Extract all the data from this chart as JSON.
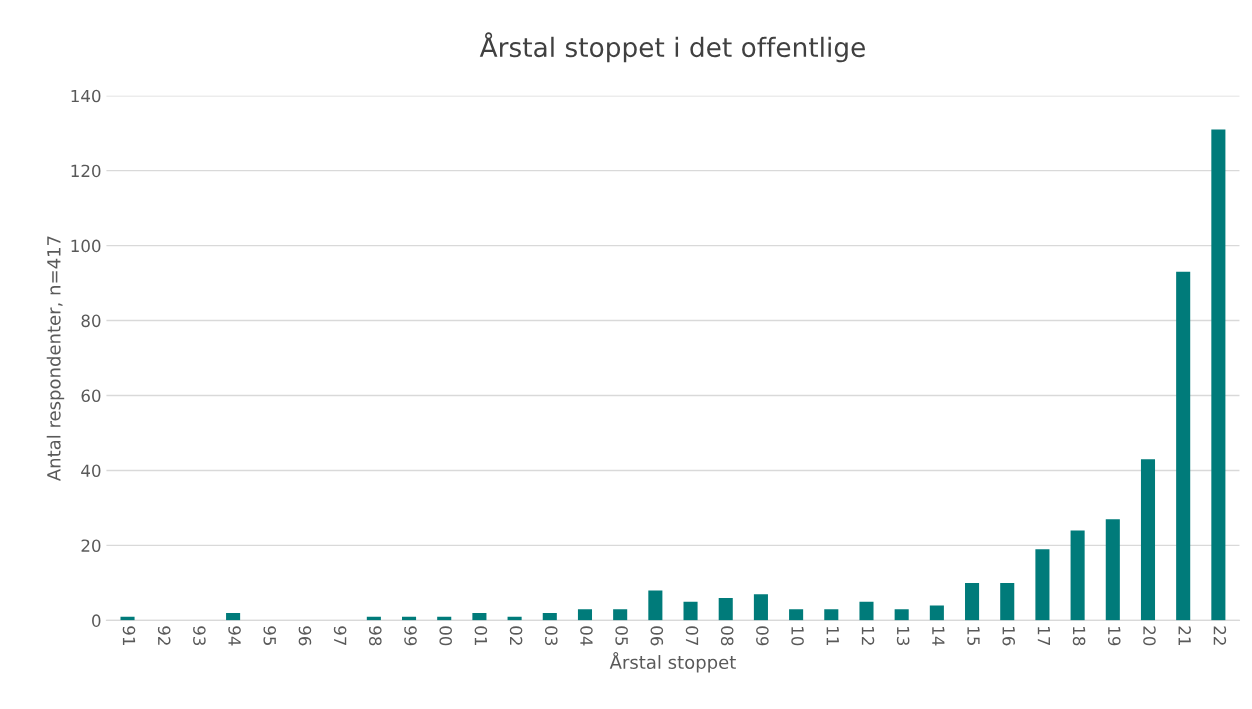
{
  "chart_data": {
    "type": "bar",
    "title": "Årstal stoppet i det offentlige",
    "xlabel": "Årstal stoppet",
    "ylabel": "Antal respondenter, n=417",
    "categories": [
      "91",
      "92",
      "93",
      "94",
      "95",
      "96",
      "97",
      "98",
      "99",
      "00",
      "01",
      "02",
      "03",
      "04",
      "05",
      "06",
      "07",
      "08",
      "09",
      "10",
      "11",
      "12",
      "13",
      "14",
      "15",
      "16",
      "17",
      "18",
      "19",
      "20",
      "21",
      "22"
    ],
    "values": [
      1,
      0,
      0,
      2,
      0,
      0,
      0,
      1,
      1,
      1,
      2,
      1,
      2,
      3,
      3,
      8,
      5,
      6,
      7,
      3,
      3,
      5,
      3,
      4,
      10,
      10,
      19,
      24,
      27,
      43,
      93,
      131
    ],
    "color": "#007b7a",
    "ylim": [
      0,
      140
    ],
    "yticks": [
      0,
      20,
      40,
      60,
      80,
      100,
      120,
      140
    ],
    "grid": "y"
  }
}
